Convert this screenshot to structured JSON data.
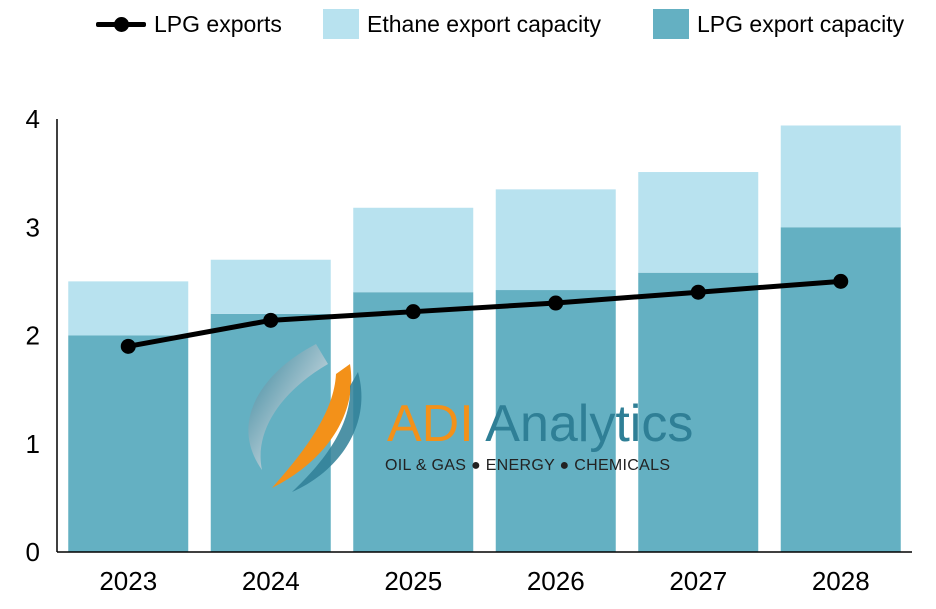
{
  "chart_data": {
    "type": "bar",
    "stacked": true,
    "categories": [
      "2023",
      "2024",
      "2025",
      "2026",
      "2027",
      "2028"
    ],
    "series": [
      {
        "name": "LPG export capacity",
        "kind": "bar",
        "color": "#64b0c2",
        "values": [
          2.0,
          2.2,
          2.4,
          2.42,
          2.58,
          3.0
        ]
      },
      {
        "name": "Ethane export capacity",
        "kind": "bar",
        "color": "#b8e2ef",
        "values": [
          0.5,
          0.5,
          0.78,
          0.93,
          0.93,
          0.94
        ]
      },
      {
        "name": "LPG exports",
        "kind": "line",
        "color": "#000000",
        "values": [
          1.9,
          2.14,
          2.22,
          2.3,
          2.4,
          2.5
        ]
      }
    ],
    "ylim": [
      0,
      4
    ],
    "yticks": [
      "0",
      "1",
      "2",
      "3",
      "4"
    ],
    "legend_position": "top",
    "grid": false,
    "title": "",
    "xlabel": "",
    "ylabel": ""
  },
  "legend": [
    {
      "label": "LPG exports",
      "type": "line"
    },
    {
      "label": "Ethane export capacity",
      "type": "box"
    },
    {
      "label": "LPG export capacity",
      "type": "box"
    }
  ],
  "watermark": {
    "brand_adi": "ADI",
    "brand_analytics": "Analytics",
    "tagline": "OIL & GAS  ●  ENERGY  ●  CHEMICALS"
  }
}
